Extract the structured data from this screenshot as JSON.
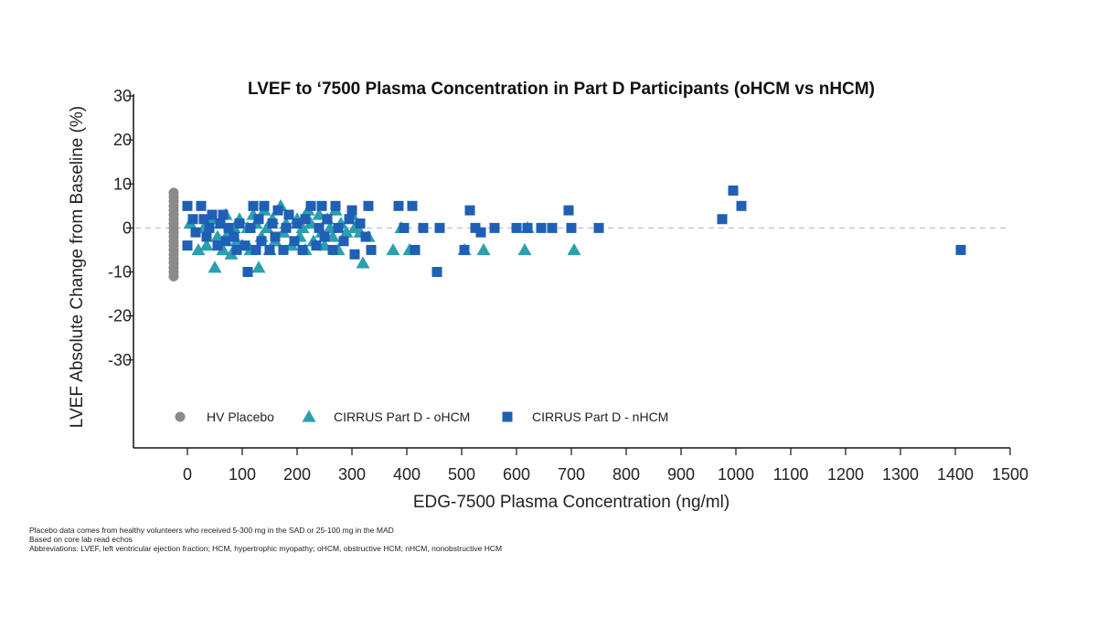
{
  "chart_data": {
    "type": "scatter",
    "title": "LVEF to ‘7500 Plasma Concentration in Part D Participants (oHCM vs nHCM)",
    "xlabel": "EDG-7500 Plasma Concentration (ng/ml)",
    "ylabel": "LVEF Absolute Change from Baseline (%)",
    "xlim": [
      -100,
      1500
    ],
    "ylim": [
      -50,
      30
    ],
    "xticks": [
      "0",
      "100",
      "200",
      "300",
      "400",
      "500",
      "600",
      "700",
      "800",
      "900",
      "1000",
      "1100",
      "1200",
      "1300",
      "1400",
      "1500"
    ],
    "xtick_values": [
      0,
      100,
      200,
      300,
      400,
      500,
      600,
      700,
      800,
      900,
      1000,
      1100,
      1200,
      1300,
      1400,
      1500
    ],
    "yticks": [
      "30",
      "20",
      "10",
      "0",
      "-10",
      "-20",
      "-30"
    ],
    "ytick_values": [
      30,
      20,
      10,
      0,
      -10,
      -20,
      -30
    ],
    "reference_line": {
      "y": 0,
      "style": "dashed",
      "color": "#c8c8c8"
    },
    "grid": false,
    "legend": "bottom-left inside plot",
    "series": [
      {
        "name": "HV Placebo",
        "marker": "circle",
        "color": "#8a8a8a",
        "points": [
          [
            -25,
            8
          ],
          [
            -25,
            7
          ],
          [
            -25,
            6
          ],
          [
            -25,
            5
          ],
          [
            -25,
            4
          ],
          [
            -25,
            3
          ],
          [
            -25,
            2
          ],
          [
            -25,
            1
          ],
          [
            -25,
            0
          ],
          [
            -25,
            -1
          ],
          [
            -25,
            -2
          ],
          [
            -25,
            -3
          ],
          [
            -25,
            -4
          ],
          [
            -25,
            -5
          ],
          [
            -25,
            -6
          ],
          [
            -25,
            -7
          ],
          [
            -25,
            -8
          ],
          [
            -25,
            -9
          ],
          [
            -25,
            -10
          ],
          [
            -25,
            -11
          ]
        ]
      },
      {
        "name": "CIRRUS Part D - oHCM",
        "marker": "triangle",
        "color": "#2a9fb0",
        "points": [
          [
            5,
            1
          ],
          [
            20,
            -5
          ],
          [
            30,
            0
          ],
          [
            35,
            -4
          ],
          [
            45,
            2
          ],
          [
            50,
            -9
          ],
          [
            55,
            -2
          ],
          [
            60,
            1
          ],
          [
            65,
            -5
          ],
          [
            70,
            3
          ],
          [
            75,
            -1
          ],
          [
            80,
            -6
          ],
          [
            85,
            0
          ],
          [
            90,
            -3
          ],
          [
            95,
            2
          ],
          [
            100,
            -4
          ],
          [
            110,
            0
          ],
          [
            115,
            -5
          ],
          [
            120,
            3
          ],
          [
            125,
            1
          ],
          [
            130,
            -9
          ],
          [
            135,
            -2
          ],
          [
            140,
            4
          ],
          [
            145,
            0
          ],
          [
            150,
            -5
          ],
          [
            155,
            2
          ],
          [
            160,
            -3
          ],
          [
            170,
            5
          ],
          [
            175,
            -1
          ],
          [
            180,
            1
          ],
          [
            190,
            -4
          ],
          [
            200,
            2
          ],
          [
            205,
            -2
          ],
          [
            210,
            0
          ],
          [
            215,
            -5
          ],
          [
            220,
            4
          ],
          [
            225,
            1
          ],
          [
            230,
            -3
          ],
          [
            240,
            3
          ],
          [
            245,
            -1
          ],
          [
            250,
            -4
          ],
          [
            255,
            2
          ],
          [
            260,
            0
          ],
          [
            265,
            -2
          ],
          [
            270,
            4
          ],
          [
            275,
            -5
          ],
          [
            280,
            1
          ],
          [
            290,
            -1
          ],
          [
            300,
            3
          ],
          [
            305,
            0
          ],
          [
            315,
            -1
          ],
          [
            320,
            -8
          ],
          [
            330,
            -2
          ],
          [
            375,
            -5
          ],
          [
            390,
            0
          ],
          [
            405,
            -5
          ],
          [
            505,
            -5
          ],
          [
            540,
            -5
          ],
          [
            615,
            -5
          ],
          [
            620,
            0
          ],
          [
            705,
            -5
          ]
        ]
      },
      {
        "name": "CIRRUS Part D - nHCM",
        "marker": "square",
        "color": "#1f5fb5",
        "points": [
          [
            0,
            5
          ],
          [
            0,
            -4
          ],
          [
            10,
            2
          ],
          [
            15,
            -1
          ],
          [
            25,
            5
          ],
          [
            30,
            2
          ],
          [
            35,
            -2
          ],
          [
            40,
            0
          ],
          [
            45,
            3
          ],
          [
            55,
            -4
          ],
          [
            60,
            1
          ],
          [
            65,
            3
          ],
          [
            70,
            -3
          ],
          [
            75,
            0
          ],
          [
            85,
            -2
          ],
          [
            90,
            -5
          ],
          [
            95,
            1
          ],
          [
            105,
            -4
          ],
          [
            110,
            -10
          ],
          [
            115,
            0
          ],
          [
            120,
            5
          ],
          [
            125,
            -5
          ],
          [
            130,
            2
          ],
          [
            135,
            -3
          ],
          [
            140,
            5
          ],
          [
            150,
            -5
          ],
          [
            155,
            1
          ],
          [
            160,
            -2
          ],
          [
            165,
            4
          ],
          [
            175,
            -5
          ],
          [
            180,
            0
          ],
          [
            185,
            3
          ],
          [
            195,
            -3
          ],
          [
            200,
            1
          ],
          [
            210,
            -5
          ],
          [
            215,
            2
          ],
          [
            225,
            5
          ],
          [
            235,
            -4
          ],
          [
            240,
            0
          ],
          [
            245,
            5
          ],
          [
            250,
            -2
          ],
          [
            255,
            2
          ],
          [
            265,
            -5
          ],
          [
            270,
            5
          ],
          [
            275,
            0
          ],
          [
            285,
            -3
          ],
          [
            295,
            2
          ],
          [
            300,
            4
          ],
          [
            305,
            -6
          ],
          [
            315,
            1
          ],
          [
            325,
            -2
          ],
          [
            330,
            5
          ],
          [
            335,
            -5
          ],
          [
            385,
            5
          ],
          [
            395,
            0
          ],
          [
            410,
            5
          ],
          [
            415,
            -5
          ],
          [
            430,
            0
          ],
          [
            455,
            -10
          ],
          [
            460,
            0
          ],
          [
            505,
            -5
          ],
          [
            515,
            4
          ],
          [
            525,
            0
          ],
          [
            535,
            -1
          ],
          [
            560,
            0
          ],
          [
            600,
            0
          ],
          [
            620,
            0
          ],
          [
            645,
            0
          ],
          [
            665,
            0
          ],
          [
            695,
            4
          ],
          [
            700,
            0
          ],
          [
            750,
            0
          ],
          [
            975,
            2
          ],
          [
            995,
            8.5
          ],
          [
            1010,
            5
          ],
          [
            1410,
            -5
          ]
        ]
      }
    ]
  },
  "footnotes": [
    "Placebo data comes from healthy volunteers who received 5-300 mg in the SAD or 25-100 mg in the MAD",
    "Based on core lab read echos",
    "Abbreviations: LVEF, left ventricular ejection fraction; HCM, hypertrophic myopathy; oHCM, obstructive HCM; nHCM, nonobstructive HCM"
  ]
}
